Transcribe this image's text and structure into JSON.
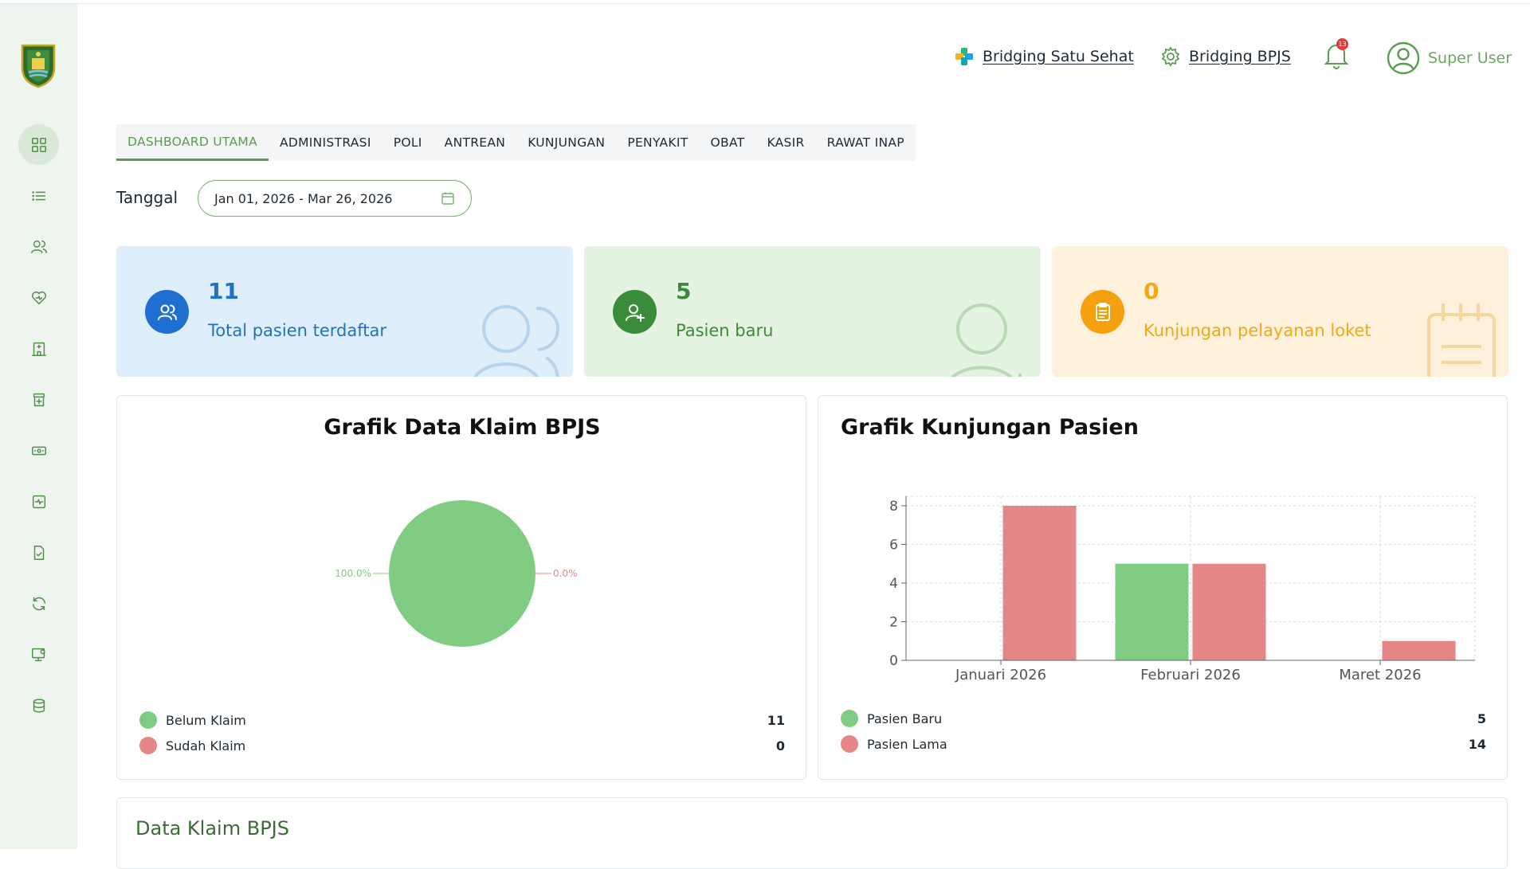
{
  "header": {
    "satu_sehat": "Bridging Satu Sehat",
    "bpjs": "Bridging BPJS",
    "notif_count": "13",
    "user_name": "Super User"
  },
  "sidebar": {
    "items": [
      "dashboard-icon",
      "list-icon",
      "users-icon",
      "heart-hand-icon",
      "hospital-icon",
      "pharmacy-icon",
      "cashier-icon",
      "activity-icon",
      "file-check-icon",
      "refresh-icon",
      "monitor-icon",
      "database-icon"
    ]
  },
  "tabs": [
    "DASHBOARD UTAMA",
    "ADMINISTRASI",
    "POLI",
    "ANTREAN",
    "KUNJUNGAN",
    "PENYAKIT",
    "OBAT",
    "KASIR",
    "RAWAT INAP"
  ],
  "filter": {
    "label": "Tanggal",
    "value": "Jan 01, 2026 - Mar 26, 2026"
  },
  "stats": [
    {
      "value": "11",
      "label": "Total pasien terdaftar",
      "color": "#1e72c6",
      "bg": "#dfeefb",
      "circle": "#1f6fd1"
    },
    {
      "value": "5",
      "label": "Pasien baru",
      "color": "#3c8a3b",
      "bg": "#e4f3e2",
      "circle": "#3a8c3a"
    },
    {
      "value": "0",
      "label": "Kunjungan pelayanan loket",
      "color": "#f2a812",
      "bg": "#fdf1dc",
      "circle": "#f5a10e"
    }
  ],
  "claims_card": {
    "title": "Grafik Data Klaim BPJS",
    "legend": [
      {
        "label": "Belum Klaim",
        "value": "11",
        "color": "#80cc82"
      },
      {
        "label": "Sudah Klaim",
        "value": "0",
        "color": "#e58787"
      }
    ]
  },
  "visits_card": {
    "title": "Grafik Kunjungan Pasien",
    "legend": [
      {
        "label": "Pasien Baru",
        "value": "5",
        "color": "#80cc82"
      },
      {
        "label": "Pasien Lama",
        "value": "14",
        "color": "#e58787"
      }
    ]
  },
  "bottom_section": {
    "title": "Data Klaim BPJS"
  },
  "chart_data": [
    {
      "type": "pie",
      "title": "Grafik Data Klaim BPJS",
      "categories": [
        "Belum Klaim",
        "Sudah Klaim"
      ],
      "values": [
        11,
        0
      ],
      "slice_labels": [
        "100.0%",
        "0.0%"
      ],
      "colors": [
        "#80cc82",
        "#e58787"
      ]
    },
    {
      "type": "bar",
      "title": "Grafik Kunjungan Pasien",
      "categories": [
        "Januari 2026",
        "Februari 2026",
        "Maret 2026"
      ],
      "series": [
        {
          "name": "Pasien Baru",
          "values": [
            0,
            5,
            0
          ],
          "color": "#80cc82"
        },
        {
          "name": "Pasien Lama",
          "values": [
            8,
            5,
            1
          ],
          "color": "#e58787"
        }
      ],
      "ylim": [
        0,
        8
      ],
      "yticks": [
        0,
        2,
        4,
        6,
        8
      ],
      "grid": true
    }
  ]
}
